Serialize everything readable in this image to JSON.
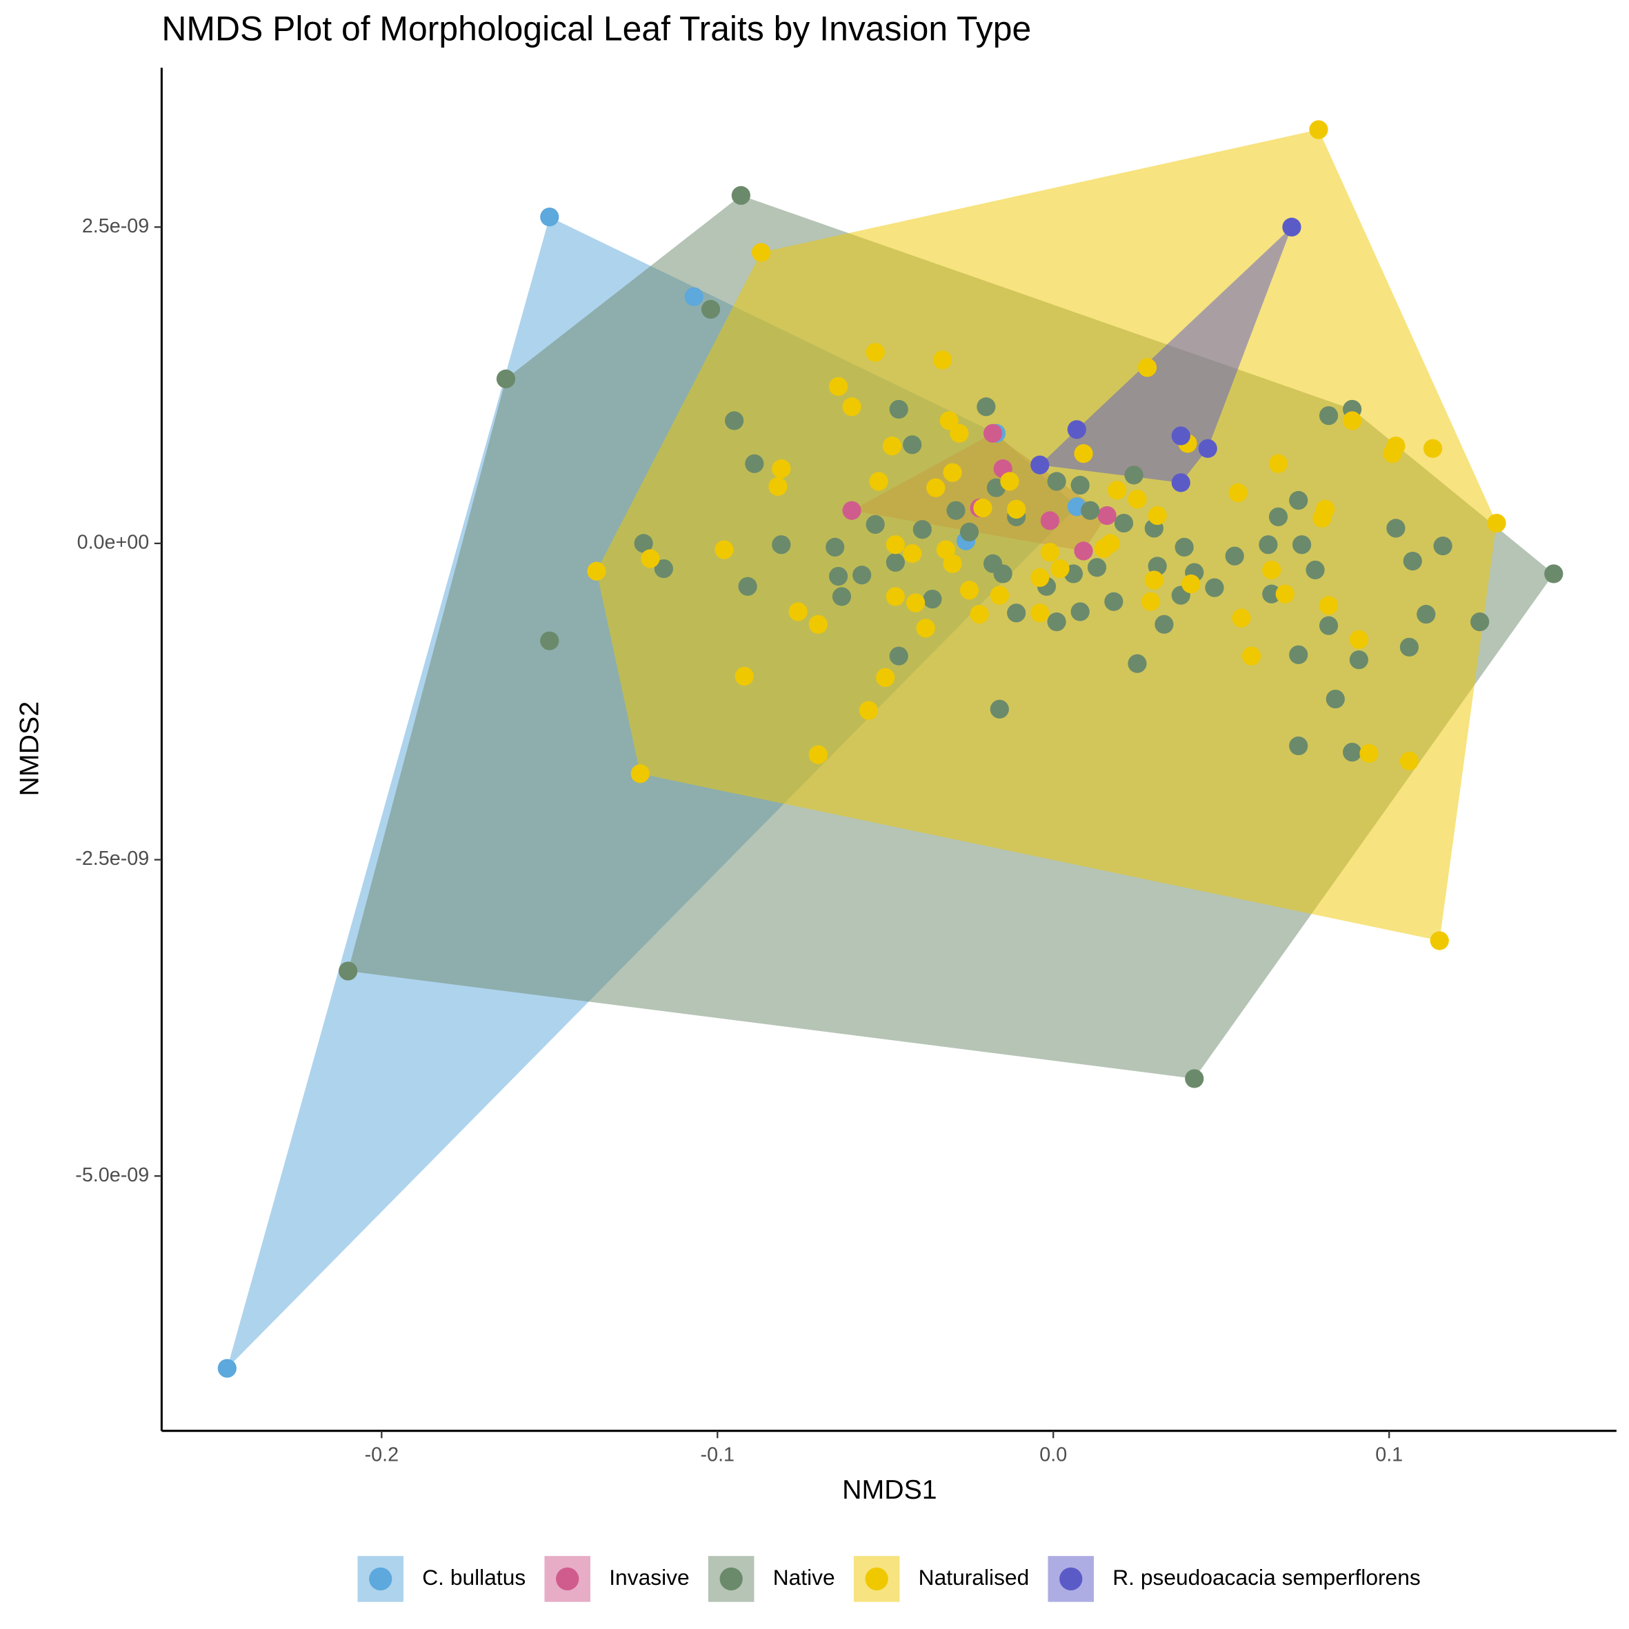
{
  "chart_data": {
    "type": "scatter",
    "title": "NMDS Plot of Morphological Leaf Traits by Invasion Type",
    "x_label": "NMDS1",
    "y_label": "NMDS2",
    "xlim": [
      -0.2655,
      0.1677
    ],
    "ylim": [
      -7.014e-09,
      3.759e-09
    ],
    "xticks": [
      -0.2,
      -0.1,
      {
        "value": 0,
        "label": "0.0"
      },
      0.1
    ],
    "yticks": [
      {
        "value": 2.5e-09,
        "label": "2.5e-09"
      },
      {
        "value": 0,
        "label": "0.0e+00"
      },
      {
        "value": -2.5e-09,
        "label": "-2.5e-09"
      },
      {
        "value": -5e-09,
        "label": "-5.0e-09"
      }
    ],
    "legend": "bottom",
    "hulls": true,
    "series": [
      {
        "name": "C. bullatus",
        "color": "#5da8dc",
        "x": [
          -0.15,
          -0.107,
          -0.017,
          -0.026,
          0.007,
          -0.246
        ],
        "values": [
          2.58e-09,
          1.95e-09,
          8.7e-10,
          2e-11,
          2.9e-10,
          -6.52e-09
        ]
      },
      {
        "name": "Invasive",
        "color": "#d05c8e",
        "x": [
          -0.06,
          -0.018,
          -0.015,
          -0.001,
          0.009,
          0.016,
          -0.022
        ],
        "values": [
          2.6e-10,
          8.7e-10,
          5.9e-10,
          1.8e-10,
          -6e-11,
          2.2e-10,
          2.8e-10
        ]
      },
      {
        "name": "Native",
        "color": "#6b8a6b",
        "x": [
          -0.093,
          -0.102,
          -0.163,
          -0.15,
          -0.21,
          0.042,
          0.149,
          0.089,
          0.082,
          -0.095,
          -0.089,
          -0.122,
          -0.116,
          -0.091,
          -0.081,
          -0.065,
          -0.064,
          -0.063,
          -0.057,
          -0.046,
          -0.042,
          -0.046,
          -0.047,
          -0.036,
          -0.02,
          -0.016,
          -0.011,
          -0.015,
          0.001,
          0.008,
          0.018,
          0.025,
          0.033,
          0.024,
          0.039,
          0.048,
          0.054,
          0.064,
          0.067,
          0.073,
          0.074,
          0.078,
          0.073,
          0.082,
          0.084,
          0.091,
          0.089,
          0.073,
          0.102,
          0.107,
          0.116,
          0.111,
          0.106,
          0.127,
          0.065,
          -0.053,
          -0.039,
          -0.029,
          -0.025,
          -0.017,
          -0.011,
          0.001,
          0.008,
          0.011,
          0.021,
          0.03,
          0.031,
          0.006,
          -0.002,
          0.013,
          0.042,
          0.038,
          -0.018
        ],
        "values": [
          2.75e-09,
          1.85e-09,
          1.3e-09,
          -7.7e-10,
          -3.38e-09,
          -4.23e-09,
          -2.4e-10,
          1.06e-09,
          1.01e-09,
          9.7e-10,
          6.3e-10,
          0,
          -2e-10,
          -3.4e-10,
          -1e-11,
          -3e-11,
          -2.6e-10,
          -4.2e-10,
          -2.5e-10,
          1.06e-09,
          7.8e-10,
          -8.9e-10,
          -1.5e-10,
          -4.4e-10,
          1.08e-09,
          -1.31e-09,
          -5.5e-10,
          -2.4e-10,
          -6.2e-10,
          -5.4e-10,
          -4.6e-10,
          -9.5e-10,
          -6.4e-10,
          5.4e-10,
          -3e-11,
          -3.5e-10,
          -1e-10,
          -1e-11,
          2.1e-10,
          3.4e-10,
          -1e-11,
          -2.1e-10,
          -8.8e-10,
          -6.5e-10,
          -1.23e-09,
          -9.2e-10,
          -1.65e-09,
          -1.6e-09,
          1.2e-10,
          -1.4e-10,
          -2e-11,
          -5.6e-10,
          -8.2e-10,
          -6.2e-10,
          -4e-10,
          1.5e-10,
          1.1e-10,
          2.6e-10,
          9e-11,
          4.4e-10,
          2.1e-10,
          4.9e-10,
          4.6e-10,
          2.6e-10,
          1.6e-10,
          1.2e-10,
          -1.8e-10,
          -2.4e-10,
          -3.4e-10,
          -1.9e-10,
          -2.3e-10,
          -4.1e-10,
          -1.6e-10
        ]
      },
      {
        "name": "Naturalised",
        "color": "#f0c800",
        "x": [
          0.079,
          -0.087,
          -0.136,
          -0.123,
          0.115,
          0.132,
          -0.053,
          -0.033,
          -0.064,
          -0.06,
          0.028,
          0.089,
          0.102,
          0.101,
          0.113,
          0.067,
          -0.081,
          -0.082,
          -0.048,
          -0.031,
          -0.028,
          -0.052,
          -0.035,
          -0.03,
          -0.013,
          -0.021,
          -0.011,
          0.009,
          0.04,
          0.019,
          0.025,
          0.031,
          0.055,
          0.081,
          0.08,
          -0.098,
          -0.12,
          -0.047,
          -0.042,
          -0.032,
          -0.03,
          -0.004,
          -0.001,
          0.002,
          0.015,
          0.017,
          0.03,
          0.029,
          0.041,
          0.065,
          0.069,
          0.082,
          0.056,
          0.059,
          0.091,
          0.094,
          0.106,
          -0.076,
          -0.07,
          -0.092,
          -0.05,
          -0.055,
          -0.07,
          -0.047,
          -0.041,
          -0.038,
          -0.025,
          -0.022,
          -0.016,
          -0.004
        ],
        "values": [
          3.27e-09,
          2.3e-09,
          -2.2e-10,
          -1.82e-09,
          -3.14e-09,
          1.6e-10,
          1.51e-09,
          1.45e-09,
          1.24e-09,
          1.08e-09,
          1.39e-09,
          9.7e-10,
          7.7e-10,
          7.1e-10,
          7.5e-10,
          6.3e-10,
          5.9e-10,
          4.5e-10,
          7.7e-10,
          9.7e-10,
          8.7e-10,
          4.9e-10,
          4.4e-10,
          5.6e-10,
          4.9e-10,
          2.8e-10,
          2.7e-10,
          7.1e-10,
          7.9e-10,
          4.2e-10,
          3.5e-10,
          2.2e-10,
          4e-10,
          2.7e-10,
          2e-10,
          -5e-11,
          -1.2e-10,
          -1e-11,
          -8e-11,
          -5e-11,
          -1.6e-10,
          -2.7e-10,
          -7e-11,
          -2e-10,
          -4e-11,
          0,
          -2.9e-10,
          -4.6e-10,
          -3.2e-10,
          -2.1e-10,
          -4e-10,
          -4.9e-10,
          -5.9e-10,
          -8.9e-10,
          -7.6e-10,
          -1.66e-09,
          -1.72e-09,
          -5.4e-10,
          -6.4e-10,
          -1.05e-09,
          -1.06e-09,
          -1.32e-09,
          -1.67e-09,
          -4.2e-10,
          -4.7e-10,
          -6.7e-10,
          -3.7e-10,
          -5.6e-10,
          -4.1e-10,
          -5.5e-10
        ]
      },
      {
        "name": "R. pseudoacacia semperflorens",
        "color": "#5b5bc8",
        "x": [
          0.071,
          0.007,
          -0.004,
          0.038,
          0.046,
          0.038
        ],
        "values": [
          2.5e-09,
          9e-10,
          6.2e-10,
          8.5e-10,
          7.5e-10,
          4.8e-10
        ]
      }
    ]
  }
}
